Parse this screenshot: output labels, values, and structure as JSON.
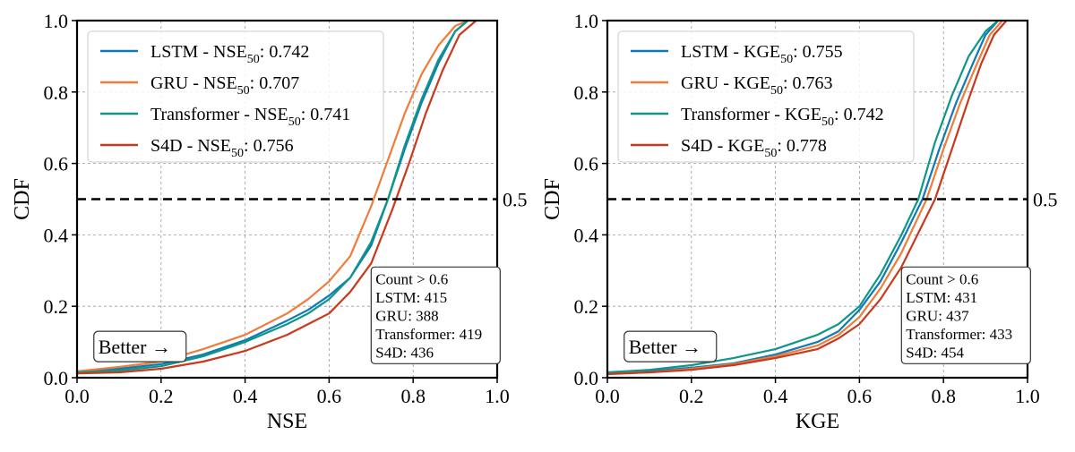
{
  "chart_data": [
    {
      "type": "line",
      "metric": "NSE",
      "xlabel": "NSE",
      "ylabel": "CDF",
      "xlim": [
        0.0,
        1.0
      ],
      "ylim": [
        0.0,
        1.0
      ],
      "xticks": [
        "0.0",
        "0.2",
        "0.4",
        "0.6",
        "0.8",
        "1.0"
      ],
      "yticks": [
        "0.0",
        "0.2",
        "0.4",
        "0.6",
        "0.8",
        "1.0"
      ],
      "grid": true,
      "legend_position": "top-left",
      "reference_line": {
        "y": 0.5,
        "label": "0.5"
      },
      "better_label": "Better →",
      "stats_box": {
        "title": "Count > 0.6",
        "lines": [
          "LSTM: 415",
          "GRU: 388",
          "Transformer: 419",
          "S4D: 436"
        ]
      },
      "series": [
        {
          "name": "LSTM",
          "median": "0.742",
          "color": "#0e7bb5",
          "x": [
            0.0,
            0.1,
            0.2,
            0.3,
            0.4,
            0.5,
            0.55,
            0.6,
            0.65,
            0.7,
            0.74,
            0.78,
            0.82,
            0.86,
            0.9,
            0.93
          ],
          "y": [
            0.015,
            0.025,
            0.038,
            0.065,
            0.105,
            0.16,
            0.19,
            0.23,
            0.28,
            0.37,
            0.5,
            0.64,
            0.77,
            0.88,
            0.97,
            1.0
          ]
        },
        {
          "name": "GRU",
          "median": "0.707",
          "color": "#f07c3a",
          "x": [
            0.0,
            0.1,
            0.2,
            0.3,
            0.4,
            0.5,
            0.55,
            0.6,
            0.65,
            0.7,
            0.74,
            0.78,
            0.82,
            0.86,
            0.9,
            0.93
          ],
          "y": [
            0.018,
            0.03,
            0.045,
            0.08,
            0.12,
            0.18,
            0.22,
            0.27,
            0.34,
            0.48,
            0.61,
            0.74,
            0.85,
            0.93,
            0.985,
            1.0
          ]
        },
        {
          "name": "Transformer",
          "median": "0.741",
          "color": "#0e9688",
          "x": [
            0.0,
            0.1,
            0.2,
            0.3,
            0.4,
            0.5,
            0.55,
            0.6,
            0.65,
            0.7,
            0.74,
            0.78,
            0.82,
            0.86,
            0.9,
            0.93
          ],
          "y": [
            0.015,
            0.02,
            0.032,
            0.06,
            0.1,
            0.15,
            0.18,
            0.22,
            0.28,
            0.38,
            0.5,
            0.65,
            0.78,
            0.89,
            0.97,
            1.0
          ]
        },
        {
          "name": "S4D",
          "median": "0.756",
          "color": "#c8391d",
          "x": [
            0.0,
            0.1,
            0.2,
            0.3,
            0.4,
            0.5,
            0.55,
            0.6,
            0.65,
            0.7,
            0.75,
            0.79,
            0.83,
            0.87,
            0.91,
            0.95
          ],
          "y": [
            0.012,
            0.015,
            0.025,
            0.045,
            0.075,
            0.12,
            0.15,
            0.18,
            0.24,
            0.32,
            0.47,
            0.6,
            0.74,
            0.86,
            0.96,
            1.0
          ]
        }
      ]
    },
    {
      "type": "line",
      "metric": "KGE",
      "xlabel": "KGE",
      "ylabel": "CDF",
      "xlim": [
        0.0,
        1.0
      ],
      "ylim": [
        0.0,
        1.0
      ],
      "xticks": [
        "0.0",
        "0.2",
        "0.4",
        "0.6",
        "0.8",
        "1.0"
      ],
      "yticks": [
        "0.0",
        "0.2",
        "0.4",
        "0.6",
        "0.8",
        "1.0"
      ],
      "grid": true,
      "legend_position": "top-left",
      "reference_line": {
        "y": 0.5,
        "label": "0.5"
      },
      "better_label": "Better →",
      "stats_box": {
        "title": "Count > 0.6",
        "lines": [
          "LSTM: 431",
          "GRU: 437",
          "Transformer: 433",
          "S4D: 454"
        ]
      },
      "series": [
        {
          "name": "LSTM",
          "median": "0.755",
          "color": "#0e7bb5",
          "x": [
            0.0,
            0.1,
            0.2,
            0.3,
            0.4,
            0.5,
            0.55,
            0.6,
            0.65,
            0.7,
            0.75,
            0.79,
            0.83,
            0.87,
            0.9,
            0.93
          ],
          "y": [
            0.012,
            0.018,
            0.028,
            0.04,
            0.065,
            0.1,
            0.13,
            0.19,
            0.27,
            0.38,
            0.5,
            0.64,
            0.77,
            0.88,
            0.96,
            1.0
          ]
        },
        {
          "name": "GRU",
          "median": "0.763",
          "color": "#f07c3a",
          "x": [
            0.0,
            0.1,
            0.2,
            0.3,
            0.4,
            0.5,
            0.55,
            0.6,
            0.65,
            0.7,
            0.76,
            0.8,
            0.84,
            0.88,
            0.91,
            0.94
          ],
          "y": [
            0.012,
            0.015,
            0.025,
            0.038,
            0.06,
            0.09,
            0.12,
            0.17,
            0.25,
            0.35,
            0.5,
            0.64,
            0.77,
            0.88,
            0.96,
            1.0
          ]
        },
        {
          "name": "Transformer",
          "median": "0.742",
          "color": "#0e9688",
          "x": [
            0.0,
            0.1,
            0.2,
            0.3,
            0.4,
            0.5,
            0.55,
            0.6,
            0.65,
            0.7,
            0.74,
            0.78,
            0.82,
            0.86,
            0.9,
            0.93
          ],
          "y": [
            0.015,
            0.022,
            0.035,
            0.055,
            0.08,
            0.12,
            0.15,
            0.2,
            0.29,
            0.4,
            0.5,
            0.66,
            0.79,
            0.9,
            0.97,
            1.0
          ]
        },
        {
          "name": "S4D",
          "median": "0.778",
          "color": "#c8391d",
          "x": [
            0.0,
            0.1,
            0.2,
            0.3,
            0.4,
            0.5,
            0.55,
            0.6,
            0.65,
            0.7,
            0.78,
            0.82,
            0.86,
            0.89,
            0.92,
            0.95
          ],
          "y": [
            0.01,
            0.015,
            0.022,
            0.035,
            0.055,
            0.08,
            0.11,
            0.15,
            0.22,
            0.31,
            0.5,
            0.64,
            0.78,
            0.88,
            0.96,
            1.0
          ]
        }
      ]
    }
  ]
}
